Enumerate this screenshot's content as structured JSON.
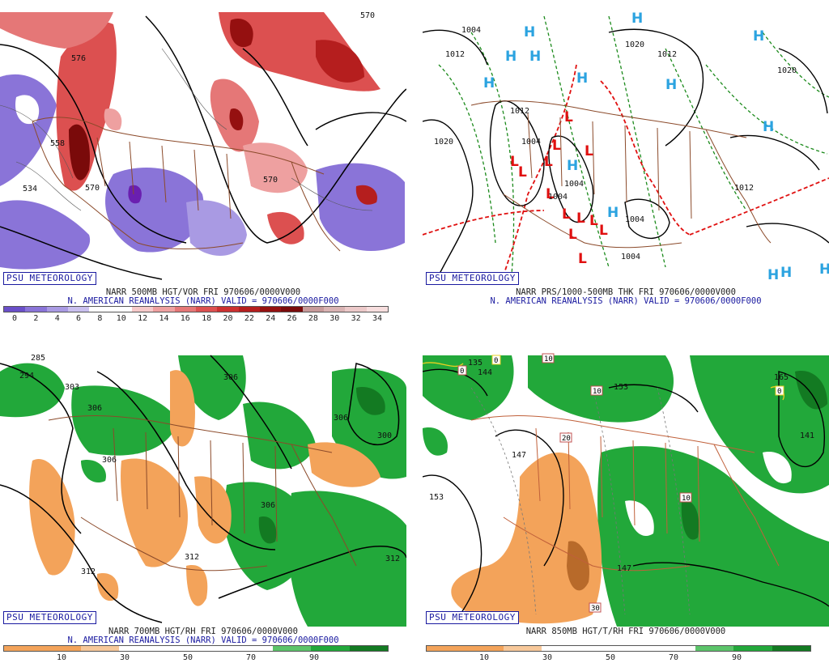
{
  "panels": {
    "top_left": {
      "caption_line1": "NARR 500MB HGT/VOR FRI 970606/0000V000",
      "caption_line2": "N. AMERICAN REANALYSIS (NARR) VALID = 970606/0000F000",
      "credit": "PSU METEOROLOGY",
      "colorbar_ticks": [
        "0",
        "2",
        "4",
        "6",
        "8",
        "10",
        "12",
        "14",
        "16",
        "18",
        "20",
        "22",
        "24",
        "26",
        "28",
        "30",
        "32",
        "34"
      ],
      "colorbar_colors": [
        "#6a4fc9",
        "#8a74d8",
        "#a99ae3",
        "#c9bfee",
        "#ffffff",
        "#ffffff",
        "#f6c9c9",
        "#eea0a0",
        "#e57777",
        "#dc5050",
        "#cc3030",
        "#b51e1e",
        "#951010",
        "#7a0a0a",
        "#c79a9a",
        "#d9b3b3",
        "#ecc9c9",
        "#f7dede"
      ],
      "height_labels": [
        "570",
        "576",
        "570",
        "570",
        "558",
        "534"
      ]
    },
    "top_right": {
      "caption_line1": "NARR PRS/1000-500MB THK FRI 970606/0000V000",
      "caption_line2": "N. AMERICAN REANALYSIS (NARR) VALID = 970606/0000F000",
      "credit": "PSU METEOROLOGY",
      "pressure_labels": [
        "1004",
        "1012",
        "1020",
        "1012",
        "1020",
        "1012",
        "1004",
        "1012",
        "1004",
        "1004",
        "1004",
        "1004",
        "1020"
      ],
      "high_symbol": "H",
      "low_symbol": "L"
    },
    "bottom_left": {
      "caption_line1": "NARR 700MB HGT/RH FRI 970606/0000V000",
      "caption_line2": "N. AMERICAN REANALYSIS (NARR) VALID = 970606/0000F000",
      "credit": "PSU METEOROLOGY",
      "colorbar_ticks": [
        "10",
        "30",
        "50",
        "70",
        "90"
      ],
      "height_labels": [
        "285",
        "294",
        "303",
        "306",
        "306",
        "306",
        "306",
        "306",
        "312",
        "312",
        "300",
        "312"
      ]
    },
    "bottom_right": {
      "caption_line1": "NARR 850MB HGT/T/RH FRI 970606/0000V000",
      "credit": "PSU METEOROLOGY",
      "colorbar_ticks": [
        "10",
        "30",
        "50",
        "70",
        "90"
      ],
      "height_labels": [
        "135",
        "144",
        "153",
        "153",
        "147",
        "147",
        "141",
        "165"
      ],
      "temp_labels": [
        "0",
        "10",
        "10",
        "20",
        "10",
        "30",
        "0",
        "0"
      ]
    }
  },
  "colors": {
    "dry_orange": "#f3a35a",
    "moist_green": "#22a83a",
    "moist_dark": "#137a22",
    "border_brown": "#8b4a2a",
    "high_blue": "#2ba3e0",
    "low_red": "#e01010"
  }
}
